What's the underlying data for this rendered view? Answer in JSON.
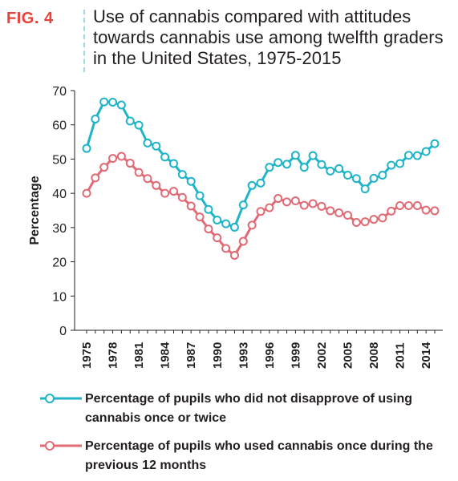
{
  "figure": {
    "label": "FIG. 4",
    "title": "Use of cannabis compared with attitudes towards cannabis use among twelfth graders in the United States, 1975-2015"
  },
  "chart_data": {
    "type": "line",
    "title": "Use of cannabis compared with attitudes towards cannabis use among twelfth graders in the United States, 1975-2015",
    "xlabel": "",
    "ylabel": "Percentage",
    "x": [
      1975,
      1976,
      1977,
      1978,
      1979,
      1980,
      1981,
      1982,
      1983,
      1984,
      1985,
      1986,
      1987,
      1988,
      1989,
      1990,
      1991,
      1992,
      1993,
      1994,
      1995,
      1996,
      1997,
      1998,
      1999,
      2000,
      2001,
      2002,
      2003,
      2004,
      2005,
      2006,
      2007,
      2008,
      2009,
      2010,
      2011,
      2012,
      2013,
      2014,
      2015
    ],
    "x_tick_labels": [
      "1975",
      "1978",
      "1981",
      "1984",
      "1987",
      "1990",
      "1993",
      "1996",
      "1999",
      "2002",
      "2005",
      "2008",
      "2011",
      "2014"
    ],
    "y_ticks": [
      0,
      10,
      20,
      30,
      40,
      50,
      60,
      70
    ],
    "ylim": [
      0,
      70
    ],
    "xlim": [
      1975,
      2015
    ],
    "grid": false,
    "legend_position": "bottom",
    "series": [
      {
        "name": "Percentage of pupils who did not disapprove of using cannabis once or twice",
        "color": "#1fb4c8",
        "values": [
          53.1,
          61.7,
          66.7,
          66.6,
          65.8,
          61.1,
          59.9,
          54.7,
          53.8,
          50.6,
          48.7,
          45.5,
          43.5,
          39.3,
          35.3,
          32.2,
          31.1,
          30.1,
          36.6,
          42.3,
          43.0,
          47.6,
          49.0,
          48.5,
          51.1,
          47.6,
          51.0,
          48.4,
          46.5,
          47.2,
          45.3,
          44.3,
          41.3,
          44.4,
          45.3,
          48.2,
          48.7,
          51.1,
          51.0,
          52.2,
          54.5
        ]
      },
      {
        "name": "Percentage of pupils who used cannabis once during the previous 12 months",
        "color": "#e06b74",
        "values": [
          40.0,
          44.5,
          47.6,
          50.2,
          50.8,
          48.8,
          46.1,
          44.3,
          42.3,
          40.0,
          40.6,
          38.8,
          36.3,
          33.1,
          29.6,
          27.0,
          23.9,
          21.9,
          26.0,
          30.7,
          34.7,
          35.8,
          38.5,
          37.5,
          37.8,
          36.5,
          37.0,
          36.2,
          34.9,
          34.3,
          33.6,
          31.5,
          31.7,
          32.4,
          32.8,
          34.8,
          36.4,
          36.4,
          36.4,
          35.1,
          34.9
        ]
      }
    ]
  }
}
